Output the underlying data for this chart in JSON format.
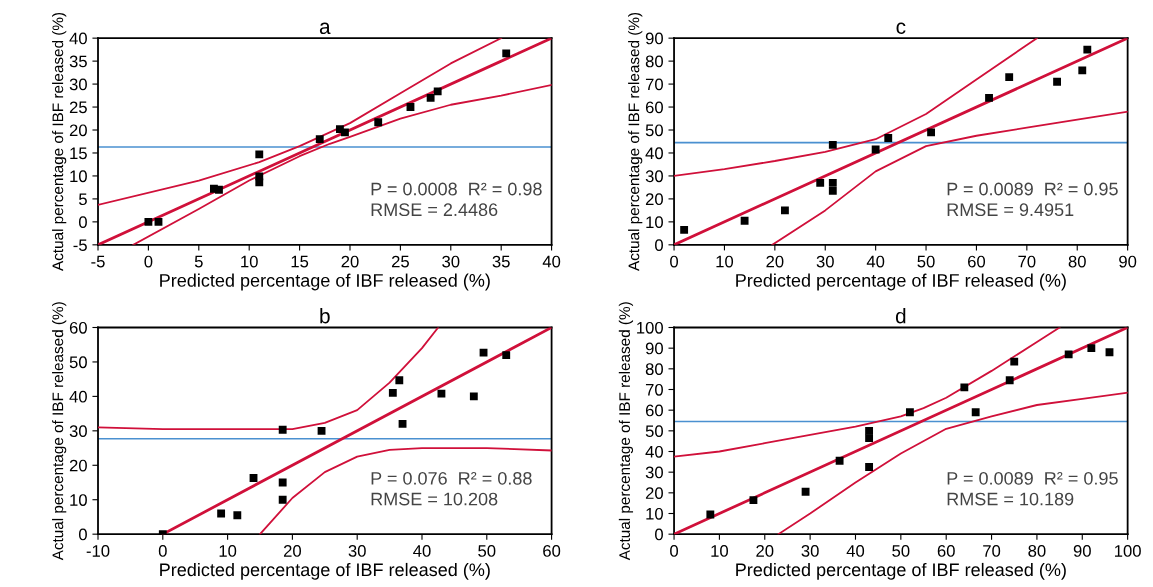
{
  "chart_data": [
    {
      "type": "scatter",
      "title": "a",
      "xlabel": "Predicted percentage of IBF released (%)",
      "ylabel": "Actual percentage of IBF released (%)",
      "xlim": [
        -5,
        40
      ],
      "ylim": [
        -5,
        40
      ],
      "xticks": [
        -5,
        0,
        5,
        10,
        15,
        20,
        25,
        30,
        35,
        40
      ],
      "yticks": [
        -5,
        0,
        5,
        10,
        15,
        20,
        25,
        30,
        35,
        40
      ],
      "grid": false,
      "legend": false,
      "series": [
        {
          "type": "scatter",
          "marker": "square",
          "color": "#000000",
          "x": [
            0,
            1,
            6.5,
            7,
            11,
            11,
            11,
            17,
            19,
            19.5,
            22.8,
            26,
            28,
            28.7,
            35.5
          ],
          "values": [
            0,
            0,
            7.2,
            7,
            14.7,
            9.9,
            8.6,
            18,
            20.2,
            19.5,
            21.7,
            25,
            27,
            28.4,
            36.7
          ]
        },
        {
          "type": "line",
          "marker": "none",
          "color": "#d0103a",
          "x": [
            -5,
            40
          ],
          "values": [
            -5,
            40
          ]
        },
        {
          "type": "line",
          "marker": "none",
          "color": "#d0103a",
          "x": [
            -5,
            5,
            11,
            15,
            20,
            25,
            30,
            35
          ],
          "values": [
            3.7,
            9,
            13,
            16.5,
            21.5,
            28,
            34.5,
            40
          ]
        },
        {
          "type": "line",
          "marker": "none",
          "color": "#d0103a",
          "x": [
            -1.5,
            5,
            10,
            15,
            18,
            20,
            25,
            30,
            35,
            40
          ],
          "values": [
            -5,
            2.8,
            9,
            14.3,
            17,
            18.5,
            22.5,
            25.5,
            27.5,
            29.8
          ]
        }
      ],
      "ref_lines": [
        {
          "axis": "y",
          "value": 16.3,
          "color": "#4a90d0"
        }
      ],
      "annotations": [
        "P = 0.0008  R² = 0.98",
        "RMSE = 2.4486"
      ]
    },
    {
      "type": "scatter",
      "title": "c",
      "xlabel": "Predicted percentage of IBF released (%)",
      "ylabel": "Actual percentage of IBF released (%)",
      "xlim": [
        0,
        90
      ],
      "ylim": [
        0,
        90
      ],
      "xticks": [
        0,
        10,
        20,
        30,
        40,
        50,
        60,
        70,
        80,
        90
      ],
      "yticks": [
        0,
        10,
        20,
        30,
        40,
        50,
        60,
        70,
        80,
        90
      ],
      "grid": false,
      "legend": false,
      "series": [
        {
          "type": "scatter",
          "marker": "square",
          "color": "#000000",
          "x": [
            2,
            14,
            22,
            29,
            31.5,
            31.5,
            31.5,
            40,
            42.5,
            51,
            62.5,
            66.5,
            76,
            81,
            82
          ],
          "values": [
            6.5,
            10.5,
            15,
            27,
            27,
            23.5,
            43.5,
            41.5,
            46.5,
            49,
            64,
            73,
            71,
            76,
            85
          ]
        },
        {
          "type": "line",
          "marker": "none",
          "color": "#d0103a",
          "x": [
            0,
            90
          ],
          "values": [
            0,
            90
          ]
        },
        {
          "type": "line",
          "marker": "none",
          "color": "#d0103a",
          "x": [
            0,
            10,
            20,
            30,
            40,
            50,
            60,
            70,
            72
          ],
          "values": [
            30,
            33,
            36.5,
            40.5,
            46,
            57,
            72,
            87,
            90
          ]
        },
        {
          "type": "line",
          "marker": "none",
          "color": "#d0103a",
          "x": [
            19.5,
            30,
            40,
            50,
            60,
            70,
            80,
            90
          ],
          "values": [
            0,
            15,
            32,
            43,
            47.5,
            51,
            54.5,
            58
          ]
        }
      ],
      "ref_lines": [
        {
          "axis": "y",
          "value": 44.5,
          "color": "#4a90d0"
        }
      ],
      "annotations": [
        "P = 0.0089  R² = 0.95",
        "RMSE = 9.4951"
      ]
    },
    {
      "type": "scatter",
      "title": "b",
      "xlabel": "Predicted percentage of IBF released (%)",
      "ylabel": "Actual percentage of IBF released (%)",
      "xlim": [
        -10,
        60
      ],
      "ylim": [
        0,
        60
      ],
      "xticks": [
        -10,
        0,
        10,
        20,
        30,
        40,
        50,
        60
      ],
      "yticks": [
        0,
        10,
        20,
        30,
        40,
        50,
        60
      ],
      "grid": false,
      "legend": false,
      "series": [
        {
          "type": "scatter",
          "marker": "square",
          "color": "#000000",
          "x": [
            0,
            9,
            11.5,
            14,
            18.5,
            18.5,
            18.5,
            24.5,
            35.5,
            36.5,
            37,
            43,
            48,
            49.5,
            53
          ],
          "values": [
            0,
            6,
            5.5,
            16.3,
            30.3,
            15,
            10,
            30,
            41,
            44.7,
            32,
            40.8,
            40,
            52.7,
            52
          ]
        },
        {
          "type": "line",
          "marker": "none",
          "color": "#d0103a",
          "x": [
            0,
            60
          ],
          "values": [
            0,
            60
          ]
        },
        {
          "type": "line",
          "marker": "none",
          "color": "#d0103a",
          "x": [
            -10,
            0,
            10,
            20,
            25,
            30,
            35,
            40,
            42.5
          ],
          "values": [
            31,
            30.5,
            30.5,
            30.5,
            32.3,
            36,
            44,
            54,
            60
          ]
        },
        {
          "type": "line",
          "marker": "none",
          "color": "#d0103a",
          "x": [
            15,
            20,
            25,
            30,
            35,
            40,
            50,
            60
          ],
          "values": [
            0,
            10.5,
            18,
            22.5,
            24.5,
            25,
            25,
            24.3
          ]
        }
      ],
      "ref_lines": [
        {
          "axis": "y",
          "value": 27.7,
          "color": "#4a90d0"
        }
      ],
      "annotations": [
        "P = 0.076  R² = 0.88",
        "RMSE = 10.208"
      ]
    },
    {
      "type": "scatter",
      "title": "d",
      "xlabel": "Predicted percentage of IBF released (%)",
      "ylabel": "Actual percentage of IBF released (%)",
      "xlim": [
        0,
        100
      ],
      "ylim": [
        0,
        100
      ],
      "xticks": [
        0,
        10,
        20,
        30,
        40,
        50,
        60,
        70,
        80,
        90,
        100
      ],
      "yticks": [
        0,
        10,
        20,
        30,
        40,
        50,
        60,
        70,
        80,
        90,
        100
      ],
      "grid": false,
      "legend": false,
      "series": [
        {
          "type": "scatter",
          "marker": "square",
          "color": "#000000",
          "x": [
            8,
            17.5,
            29,
            36.5,
            43,
            43,
            43,
            52,
            64,
            66.5,
            74,
            75,
            87,
            92,
            96
          ],
          "values": [
            9.5,
            16.5,
            20.5,
            35.5,
            50,
            46.5,
            32.5,
            59,
            71,
            59,
            74.5,
            83.5,
            87,
            90,
            88
          ]
        },
        {
          "type": "line",
          "marker": "none",
          "color": "#d0103a",
          "x": [
            0,
            100
          ],
          "values": [
            0,
            100
          ]
        },
        {
          "type": "line",
          "marker": "none",
          "color": "#d0103a",
          "x": [
            0,
            10,
            20,
            30,
            40,
            50,
            55,
            60,
            70,
            80,
            85
          ],
          "values": [
            37.5,
            40,
            44,
            48,
            52,
            57,
            61,
            66,
            79,
            93,
            100
          ]
        },
        {
          "type": "line",
          "marker": "none",
          "color": "#d0103a",
          "x": [
            23,
            30,
            40,
            50,
            60,
            70,
            80,
            90,
            100
          ],
          "values": [
            0,
            10,
            25,
            39,
            51,
            57,
            62.5,
            65.5,
            68.5
          ]
        }
      ],
      "ref_lines": [
        {
          "axis": "y",
          "value": 54.5,
          "color": "#4a90d0"
        }
      ],
      "annotations": [
        "P = 0.0089  R² = 0.95",
        "RMSE = 10.189"
      ]
    }
  ]
}
